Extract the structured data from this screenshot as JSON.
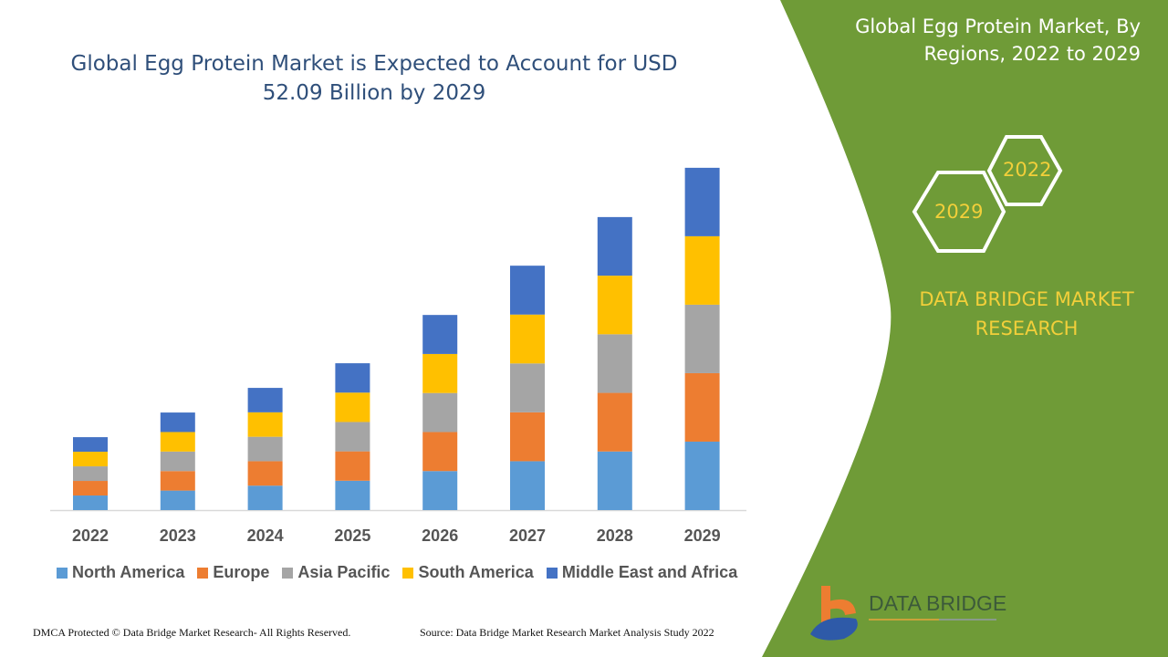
{
  "header": {
    "title": "Global Egg Protein Market is Expected to Account for USD 52.09 Billion by 2029"
  },
  "side_panel": {
    "title": "Global Egg Protein Market, By Regions, 2022 to 2029",
    "hex_start": "2022",
    "hex_end": "2029",
    "brand": "DATA BRIDGE MARKET RESEARCH",
    "logo_text": "DATA BRIDGE",
    "panel_color": "#6f9b37",
    "accent_color": "#f2cf3a"
  },
  "footer": {
    "left": "DMCA Protected © Data Bridge Market Research- All Rights Reserved.",
    "right": "Source: Data Bridge Market Research Market Analysis Study 2022"
  },
  "chart_data": {
    "type": "bar",
    "stacked": true,
    "categories": [
      "2022",
      "2023",
      "2024",
      "2025",
      "2026",
      "2027",
      "2028",
      "2029"
    ],
    "ylim": [
      0,
      60
    ],
    "grid": false,
    "legend_placement": "bottom",
    "series": [
      {
        "name": "North America",
        "color": "#5b9bd5",
        "values": [
          2.22,
          2.97,
          3.72,
          4.47,
          5.94,
          7.44,
          8.92,
          10.42
        ]
      },
      {
        "name": "Europe",
        "color": "#ed7d31",
        "values": [
          2.22,
          2.97,
          3.72,
          4.47,
          5.94,
          7.44,
          8.92,
          10.42
        ]
      },
      {
        "name": "Asia Pacific",
        "color": "#a5a5a5",
        "values": [
          2.22,
          2.97,
          3.72,
          4.47,
          5.94,
          7.44,
          8.92,
          10.42
        ]
      },
      {
        "name": "South America",
        "color": "#ffc000",
        "values": [
          2.22,
          2.97,
          3.72,
          4.47,
          5.94,
          7.44,
          8.92,
          10.42
        ]
      },
      {
        "name": "Middle East and Africa",
        "color": "#4472c4",
        "values": [
          2.22,
          2.97,
          3.72,
          4.47,
          5.94,
          7.44,
          8.92,
          10.42
        ]
      }
    ]
  }
}
